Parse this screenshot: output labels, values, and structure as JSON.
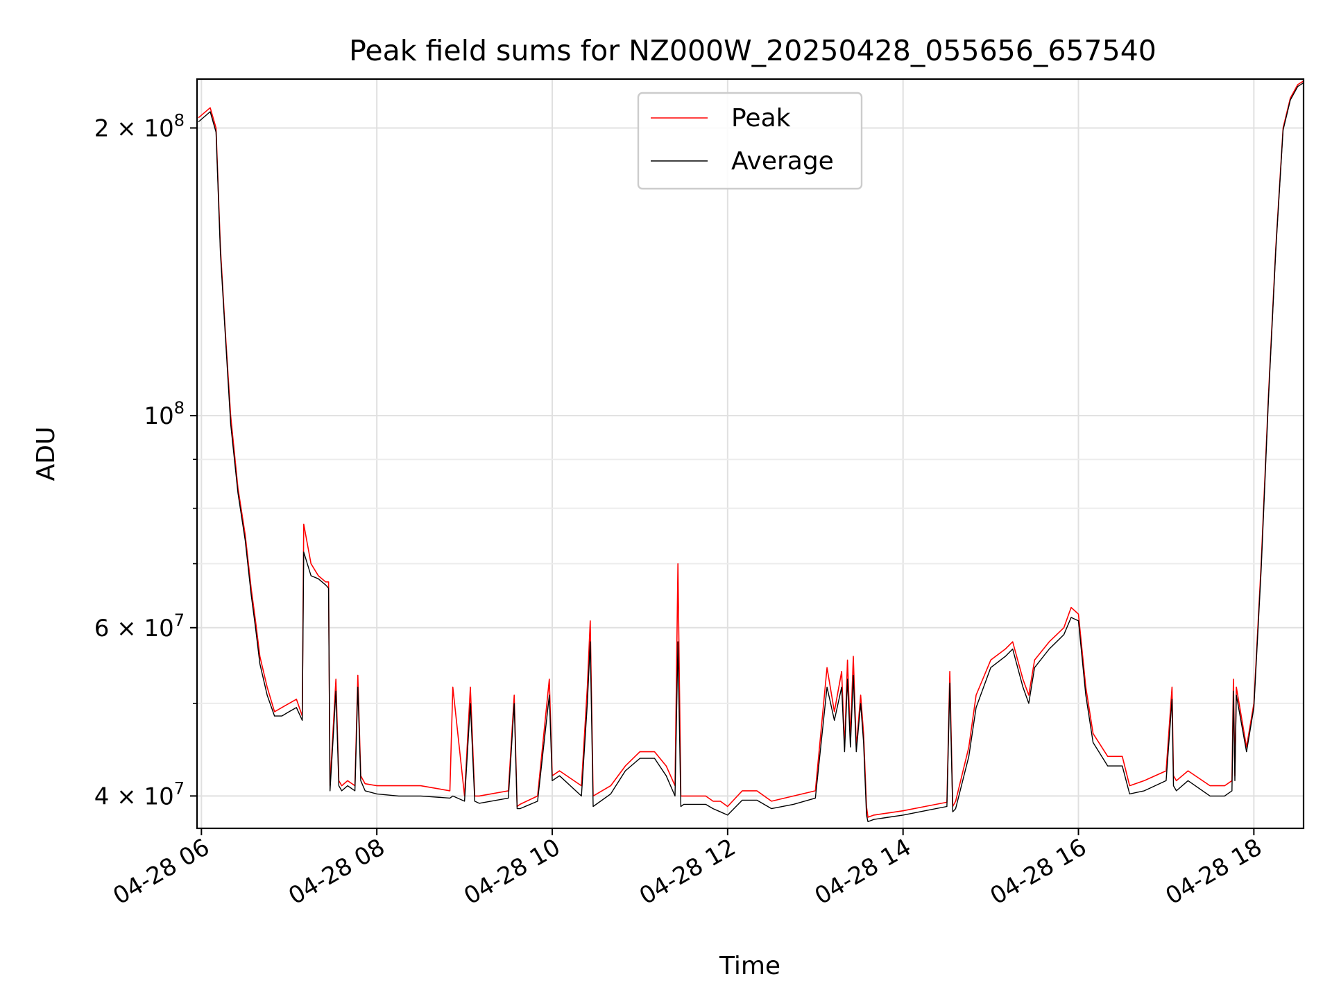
{
  "chart_data": {
    "type": "line",
    "title": "Peak field sums for NZ000W_20250428_055656_657540",
    "xlabel": "Time",
    "ylabel": "ADU",
    "yscale": "log",
    "xlim": [
      "04-28 05:57",
      "04-28 18:34"
    ],
    "ylim": [
      37000000,
      225000000
    ],
    "x_ticks": [
      "04-28 06",
      "04-28 08",
      "04-28 10",
      "04-28 12",
      "04-28 14",
      "04-28 16",
      "04-28 18"
    ],
    "y_ticks": [
      {
        "value": 40000000,
        "mantissa": "4",
        "exponent": "7"
      },
      {
        "value": 60000000,
        "mantissa": "6",
        "exponent": "7"
      },
      {
        "value": 100000000,
        "mantissa": "",
        "exponent": "8"
      },
      {
        "value": 200000000,
        "mantissa": "2",
        "exponent": "8"
      }
    ],
    "y_minor_ticks": [
      50000000,
      70000000,
      80000000,
      90000000
    ],
    "grid": true,
    "legend_position": "top-center",
    "series": [
      {
        "name": "Peak",
        "color": "#ff0000",
        "x": [
          "04-28 05:58",
          "04-28 06:06",
          "04-28 06:10",
          "04-28 06:13",
          "04-28 06:16",
          "04-28 06:20",
          "04-28 06:25",
          "04-28 06:30",
          "04-28 06:34",
          "04-28 06:37",
          "04-28 06:40",
          "04-28 06:45",
          "04-28 06:50",
          "04-28 06:55",
          "04-28 07:00",
          "04-28 07:05",
          "04-28 07:09",
          "04-28 07:10",
          "04-28 07:15",
          "04-28 07:20",
          "04-28 07:25",
          "04-28 07:27",
          "04-28 07:28",
          "04-28 07:32",
          "04-28 07:34",
          "04-28 07:36",
          "04-28 07:40",
          "04-28 07:45",
          "04-28 07:47",
          "04-28 07:49",
          "04-28 07:52",
          "04-28 08:00",
          "04-28 08:15",
          "04-28 08:30",
          "04-28 08:50",
          "04-28 08:52",
          "04-28 09:00",
          "04-28 09:04",
          "04-28 09:07",
          "04-28 09:10",
          "04-28 09:30",
          "04-28 09:34",
          "04-28 09:36",
          "04-28 09:38",
          "04-28 09:50",
          "04-28 09:58",
          "04-28 10:00",
          "04-28 10:05",
          "04-28 10:20",
          "04-28 10:24",
          "04-28 10:26",
          "04-28 10:28",
          "04-28 10:40",
          "04-28 10:50",
          "04-28 11:00",
          "04-28 11:10",
          "04-28 11:18",
          "04-28 11:24",
          "04-28 11:26",
          "04-28 11:28",
          "04-28 11:30",
          "04-28 11:45",
          "04-28 11:50",
          "04-28 11:55",
          "04-28 12:00",
          "04-28 12:10",
          "04-28 12:20",
          "04-28 12:30",
          "04-28 12:45",
          "04-28 13:00",
          "04-28 13:08",
          "04-28 13:13",
          "04-28 13:18",
          "04-28 13:20",
          "04-28 13:22",
          "04-28 13:24",
          "04-28 13:26",
          "04-28 13:28",
          "04-28 13:31",
          "04-28 13:33",
          "04-28 13:35",
          "04-28 13:36",
          "04-28 13:40",
          "04-28 13:50",
          "04-28 14:00",
          "04-28 14:15",
          "04-28 14:30",
          "04-28 14:32",
          "04-28 14:34",
          "04-28 14:36",
          "04-28 14:45",
          "04-28 14:50",
          "04-28 15:00",
          "04-28 15:10",
          "04-28 15:15",
          "04-28 15:22",
          "04-28 15:26",
          "04-28 15:30",
          "04-28 15:40",
          "04-28 15:50",
          "04-28 15:55",
          "04-28 16:00",
          "04-28 16:05",
          "04-28 16:10",
          "04-28 16:20",
          "04-28 16:30",
          "04-28 16:35",
          "04-28 16:45",
          "04-28 17:00",
          "04-28 17:04",
          "04-28 17:05",
          "04-28 17:07",
          "04-28 17:15",
          "04-28 17:30",
          "04-28 17:40",
          "04-28 17:45",
          "04-28 17:46",
          "04-28 17:47",
          "04-28 17:48",
          "04-28 17:55",
          "04-28 18:00",
          "04-28 18:05",
          "04-28 18:10",
          "04-28 18:15",
          "04-28 18:20",
          "04-28 18:25",
          "04-28 18:30",
          "04-28 18:34"
        ],
        "values": [
          205000000,
          210000000,
          200000000,
          150000000,
          125000000,
          100000000,
          84000000,
          75000000,
          66000000,
          61000000,
          56000000,
          52000000,
          49000000,
          49500000,
          50000000,
          50500000,
          48500000,
          77000000,
          70000000,
          68000000,
          67000000,
          67000000,
          41000000,
          53000000,
          41500000,
          41000000,
          41500000,
          41000000,
          53500000,
          42000000,
          41200000,
          41000000,
          41000000,
          41000000,
          40500000,
          52000000,
          40000000,
          52000000,
          40000000,
          40000000,
          40500000,
          51000000,
          39000000,
          39200000,
          40000000,
          53000000,
          42000000,
          42500000,
          41000000,
          52000000,
          61000000,
          40000000,
          41000000,
          43000000,
          44500000,
          44500000,
          43000000,
          41000000,
          70000000,
          40000000,
          40000000,
          40000000,
          39500000,
          39500000,
          39000000,
          40500000,
          40500000,
          39500000,
          40000000,
          40500000,
          54500000,
          49000000,
          54000000,
          45000000,
          55500000,
          46000000,
          56000000,
          45000000,
          51000000,
          46500000,
          39000000,
          38000000,
          38200000,
          38400000,
          38600000,
          39000000,
          39400000,
          54000000,
          39000000,
          39500000,
          45000000,
          51000000,
          55500000,
          57000000,
          58000000,
          53000000,
          51000000,
          55500000,
          58000000,
          60000000,
          63000000,
          62000000,
          52000000,
          46500000,
          44000000,
          44000000,
          41000000,
          41500000,
          42500000,
          52000000,
          42000000,
          41500000,
          42500000,
          41000000,
          41000000,
          41500000,
          53000000,
          42000000,
          52000000,
          45000000,
          50000000,
          70000000,
          105000000,
          150000000,
          200000000,
          215000000,
          222000000,
          224000000
        ],
        "values_sampled_at_x": true
      },
      {
        "name": "Average",
        "color": "#000000",
        "x": [
          "04-28 05:58",
          "04-28 06:06",
          "04-28 06:10",
          "04-28 06:13",
          "04-28 06:16",
          "04-28 06:20",
          "04-28 06:25",
          "04-28 06:30",
          "04-28 06:34",
          "04-28 06:37",
          "04-28 06:40",
          "04-28 06:45",
          "04-28 06:50",
          "04-28 06:55",
          "04-28 07:00",
          "04-28 07:05",
          "04-28 07:09",
          "04-28 07:10",
          "04-28 07:15",
          "04-28 07:20",
          "04-28 07:25",
          "04-28 07:27",
          "04-28 07:28",
          "04-28 07:32",
          "04-28 07:34",
          "04-28 07:36",
          "04-28 07:40",
          "04-28 07:45",
          "04-28 07:47",
          "04-28 07:49",
          "04-28 07:52",
          "04-28 08:00",
          "04-28 08:15",
          "04-28 08:30",
          "04-28 08:50",
          "04-28 08:52",
          "04-28 09:00",
          "04-28 09:04",
          "04-28 09:07",
          "04-28 09:10",
          "04-28 09:30",
          "04-28 09:34",
          "04-28 09:36",
          "04-28 09:38",
          "04-28 09:50",
          "04-28 09:58",
          "04-28 10:00",
          "04-28 10:05",
          "04-28 10:20",
          "04-28 10:24",
          "04-28 10:26",
          "04-28 10:28",
          "04-28 10:40",
          "04-28 10:50",
          "04-28 11:00",
          "04-28 11:10",
          "04-28 11:18",
          "04-28 11:24",
          "04-28 11:26",
          "04-28 11:28",
          "04-28 11:30",
          "04-28 11:45",
          "04-28 11:50",
          "04-28 11:55",
          "04-28 12:00",
          "04-28 12:10",
          "04-28 12:20",
          "04-28 12:30",
          "04-28 12:45",
          "04-28 13:00",
          "04-28 13:08",
          "04-28 13:13",
          "04-28 13:18",
          "04-28 13:20",
          "04-28 13:22",
          "04-28 13:24",
          "04-28 13:26",
          "04-28 13:28",
          "04-28 13:31",
          "04-28 13:33",
          "04-28 13:35",
          "04-28 13:36",
          "04-28 13:40",
          "04-28 13:50",
          "04-28 14:00",
          "04-28 14:15",
          "04-28 14:30",
          "04-28 14:32",
          "04-28 14:34",
          "04-28 14:36",
          "04-28 14:45",
          "04-28 14:50",
          "04-28 15:00",
          "04-28 15:10",
          "04-28 15:15",
          "04-28 15:22",
          "04-28 15:26",
          "04-28 15:30",
          "04-28 15:40",
          "04-28 15:50",
          "04-28 15:55",
          "04-28 16:00",
          "04-28 16:05",
          "04-28 16:10",
          "04-28 16:20",
          "04-28 16:30",
          "04-28 16:35",
          "04-28 16:45",
          "04-28 17:00",
          "04-28 17:04",
          "04-28 17:05",
          "04-28 17:07",
          "04-28 17:15",
          "04-28 17:30",
          "04-28 17:40",
          "04-28 17:45",
          "04-28 17:46",
          "04-28 17:47",
          "04-28 17:48",
          "04-28 17:55",
          "04-28 18:00",
          "04-28 18:05",
          "04-28 18:10",
          "04-28 18:15",
          "04-28 18:20",
          "04-28 18:25",
          "04-28 18:30",
          "04-28 18:34"
        ],
        "values": [
          203000000,
          208000000,
          198000000,
          148000000,
          124000000,
          98000000,
          83000000,
          74000000,
          65000000,
          60000000,
          55000000,
          51000000,
          48500000,
          48500000,
          49000000,
          49500000,
          48000000,
          72000000,
          68000000,
          67500000,
          66500000,
          66000000,
          40500000,
          51500000,
          41000000,
          40500000,
          41000000,
          40500000,
          52000000,
          41500000,
          40500000,
          40200000,
          40000000,
          40000000,
          39800000,
          40000000,
          39500000,
          50000000,
          39500000,
          39300000,
          39800000,
          50000000,
          38800000,
          38800000,
          39500000,
          51000000,
          41500000,
          42000000,
          40000000,
          50000000,
          58000000,
          39000000,
          40200000,
          42500000,
          43800000,
          43800000,
          42000000,
          40000000,
          58000000,
          39000000,
          39200000,
          39200000,
          38800000,
          38500000,
          38200000,
          39600000,
          39600000,
          38800000,
          39200000,
          39800000,
          52000000,
          48000000,
          52000000,
          44500000,
          53000000,
          45000000,
          53500000,
          44500000,
          50000000,
          45500000,
          38200000,
          37600000,
          37800000,
          38000000,
          38200000,
          38600000,
          39000000,
          52500000,
          38500000,
          38800000,
          44000000,
          49500000,
          54500000,
          56000000,
          57000000,
          52000000,
          50000000,
          54500000,
          57000000,
          59000000,
          61500000,
          61000000,
          51000000,
          45500000,
          43000000,
          43000000,
          40200000,
          40500000,
          41500000,
          50500000,
          41000000,
          40500000,
          41500000,
          40000000,
          40000000,
          40500000,
          51500000,
          41500000,
          51000000,
          44500000,
          49500000,
          69000000,
          104000000,
          149000000,
          199000000,
          214000000,
          221000000,
          223000000
        ],
        "values_sampled_at_x": true
      }
    ]
  }
}
